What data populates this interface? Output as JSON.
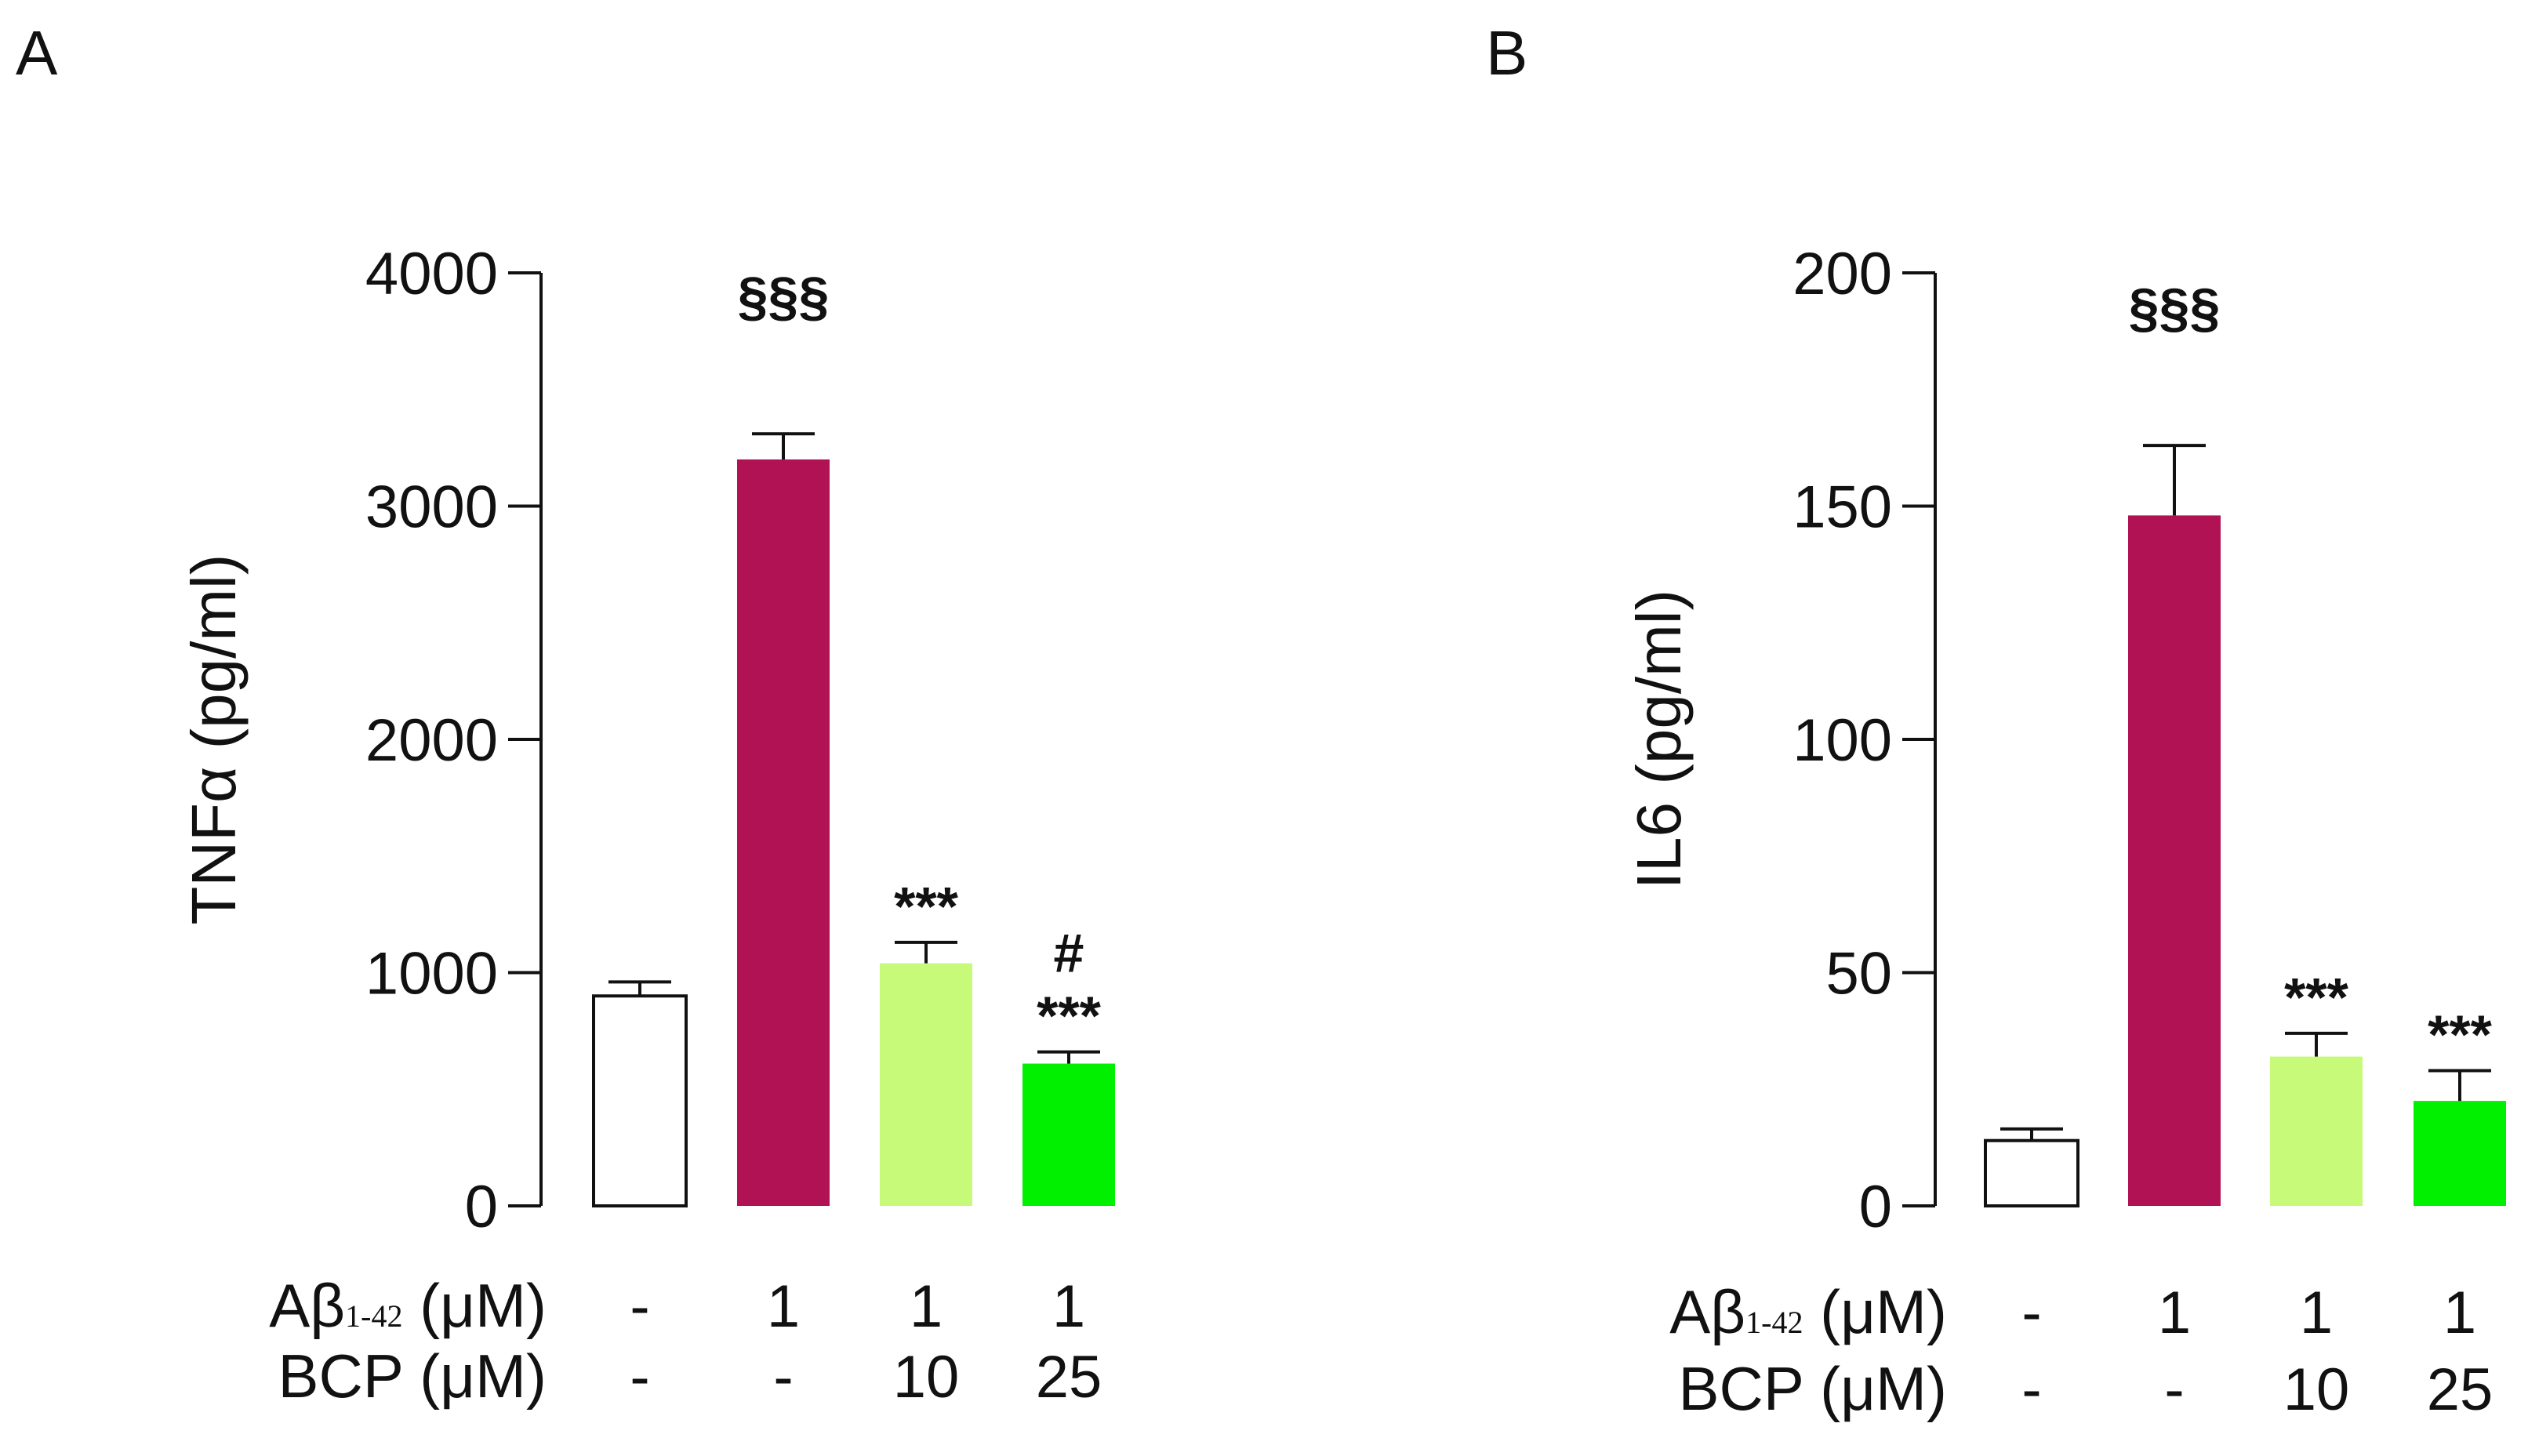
{
  "chart_data": [
    {
      "type": "bar",
      "panel": "A",
      "ylabel": "TNFα (pg/ml)",
      "ylim": [
        0,
        4000
      ],
      "yticks": [
        "0",
        "1000",
        "2000",
        "3000",
        "4000"
      ],
      "values": [
        900,
        3200,
        1040,
        610
      ],
      "errors": [
        60,
        110,
        90,
        50
      ],
      "annotations": [
        [],
        [
          "§§§"
        ],
        [
          "***"
        ],
        [
          "#",
          "***"
        ]
      ],
      "colors": [
        "#ffffff",
        "#b01254",
        "#c6fa78",
        "#00f000"
      ],
      "rows": [
        {
          "label_main": "Aβ",
          "label_sub": "1-42",
          "label_rest": " (μM)",
          "values": [
            "-",
            "1",
            "1",
            "1"
          ]
        },
        {
          "label_main": "BCP (μM)",
          "label_sub": "",
          "label_rest": "",
          "values": [
            "-",
            "-",
            "10",
            "25"
          ]
        }
      ]
    },
    {
      "type": "bar",
      "panel": "B",
      "ylabel": "IL6 (pg/ml)",
      "ylim": [
        0,
        200
      ],
      "yticks": [
        "0",
        "50",
        "100",
        "150",
        "200"
      ],
      "values": [
        14,
        148,
        32,
        22.5
      ],
      "errors": [
        2.5,
        15,
        5,
        6.5
      ],
      "annotations": [
        [],
        [
          "§§§"
        ],
        [
          "***"
        ],
        [
          "***"
        ]
      ],
      "colors": [
        "#ffffff",
        "#b01254",
        "#c6fa78",
        "#00f000"
      ],
      "rows": [
        {
          "label_main": "Aβ",
          "label_sub": "1-42",
          "label_rest": " (μM)",
          "values": [
            "-",
            "1",
            "1",
            "1"
          ]
        },
        {
          "label_main": "BCP (μM)",
          "label_sub": "",
          "label_rest": "",
          "values": [
            "-",
            "-",
            "10",
            "25"
          ]
        }
      ]
    }
  ]
}
